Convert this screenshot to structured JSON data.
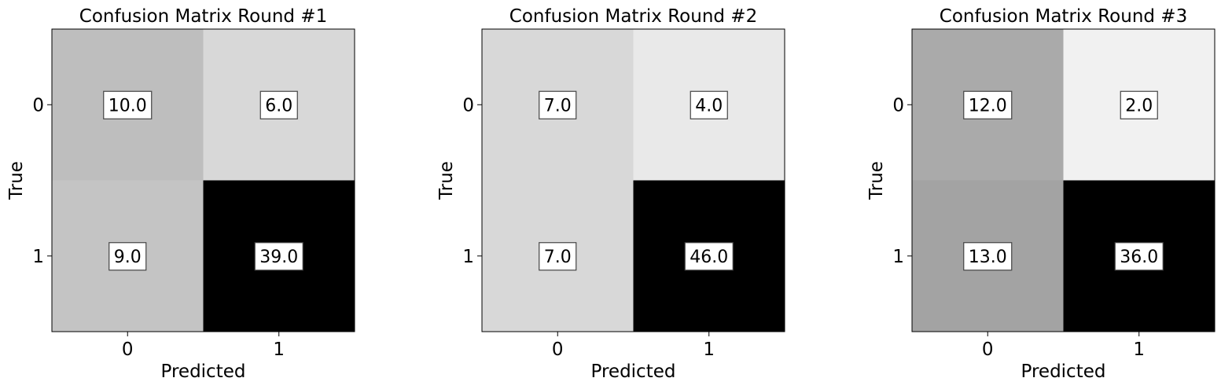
{
  "chart_data": [
    {
      "type": "heatmap",
      "title": "Confusion Matrix Round #1",
      "xlabel": "Predicted",
      "ylabel": "True",
      "x_categories": [
        "0",
        "1"
      ],
      "y_categories": [
        "0",
        "1"
      ],
      "values": [
        [
          10,
          6
        ],
        [
          9,
          39
        ]
      ],
      "value_labels": [
        [
          "10.0",
          "6.0"
        ],
        [
          "9.0",
          "39.0"
        ]
      ],
      "colormap": "greys",
      "grid": false
    },
    {
      "type": "heatmap",
      "title": "Confusion Matrix Round #2",
      "xlabel": "Predicted",
      "ylabel": "True",
      "x_categories": [
        "0",
        "1"
      ],
      "y_categories": [
        "0",
        "1"
      ],
      "values": [
        [
          7,
          4
        ],
        [
          7,
          46
        ]
      ],
      "value_labels": [
        [
          "7.0",
          "4.0"
        ],
        [
          "7.0",
          "46.0"
        ]
      ],
      "colormap": "greys",
      "grid": false
    },
    {
      "type": "heatmap",
      "title": "Confusion Matrix Round #3",
      "xlabel": "Predicted",
      "ylabel": "True",
      "x_categories": [
        "0",
        "1"
      ],
      "y_categories": [
        "0",
        "1"
      ],
      "values": [
        [
          12,
          2
        ],
        [
          13,
          36
        ]
      ],
      "value_labels": [
        [
          "12.0",
          "2.0"
        ],
        [
          "13.0",
          "36.0"
        ]
      ],
      "colormap": "greys",
      "grid": false
    }
  ]
}
